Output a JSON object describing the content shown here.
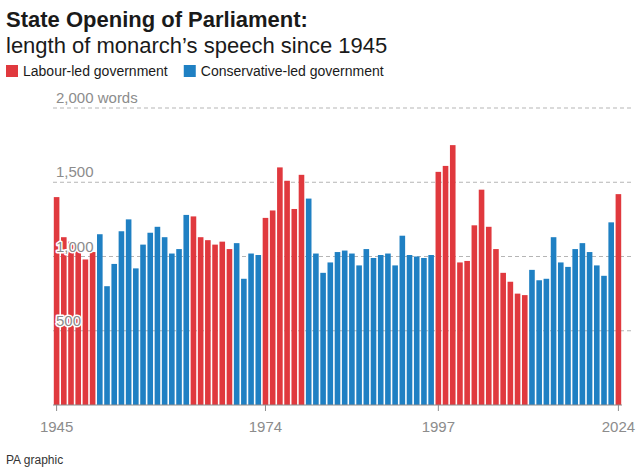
{
  "chart_data": {
    "type": "bar",
    "title": "State Opening of Parliament:",
    "subtitle": "length of monarch’s speech since 1945",
    "source": "PA graphic",
    "categories": [
      "1945",
      null,
      null,
      null,
      null,
      null,
      null,
      null,
      null,
      null,
      null,
      null,
      null,
      null,
      null,
      null,
      null,
      null,
      null,
      null,
      null,
      null,
      null,
      null,
      null,
      null,
      null,
      null,
      null,
      "1974",
      null,
      null,
      null,
      null,
      null,
      null,
      null,
      null,
      null,
      null,
      null,
      null,
      null,
      null,
      null,
      null,
      null,
      null,
      null,
      null,
      null,
      null,
      null,
      "1997",
      null,
      null,
      null,
      null,
      null,
      null,
      null,
      null,
      null,
      null,
      null,
      null,
      null,
      null,
      null,
      null,
      null,
      null,
      null,
      null,
      null,
      null,
      null,
      null,
      "2024"
    ],
    "series": [
      {
        "name": "Labour-led government",
        "color": "#e0393e",
        "values": [
          1400,
          1130,
          1100,
          1040,
          980,
          1030,
          null,
          null,
          null,
          null,
          null,
          null,
          null,
          null,
          null,
          null,
          null,
          null,
          null,
          1270,
          1130,
          1110,
          1080,
          1100,
          1050,
          null,
          null,
          null,
          null,
          1260,
          1310,
          1600,
          1510,
          1320,
          1550,
          null,
          null,
          null,
          null,
          null,
          null,
          null,
          null,
          null,
          null,
          null,
          null,
          null,
          null,
          null,
          null,
          null,
          null,
          1570,
          1610,
          1750,
          960,
          970,
          1210,
          1450,
          1200,
          1050,
          890,
          830,
          750,
          740,
          null,
          null,
          null,
          null,
          null,
          null,
          null,
          null,
          null,
          null,
          null,
          null,
          1420
        ]
      },
      {
        "name": "Conservative-led government",
        "color": "#1f80c3",
        "values": [
          null,
          null,
          null,
          null,
          null,
          null,
          1150,
          800,
          950,
          1170,
          1250,
          920,
          1080,
          1160,
          1200,
          1130,
          1020,
          1050,
          1280,
          null,
          null,
          null,
          null,
          null,
          null,
          1090,
          850,
          1020,
          1010,
          null,
          null,
          null,
          null,
          null,
          null,
          1390,
          1020,
          890,
          960,
          1030,
          1040,
          1020,
          940,
          1050,
          990,
          1010,
          1020,
          940,
          1140,
          1010,
          1000,
          990,
          1010,
          null,
          null,
          null,
          null,
          null,
          null,
          null,
          null,
          null,
          null,
          null,
          null,
          null,
          910,
          840,
          850,
          1130,
          960,
          930,
          1050,
          1090,
          1030,
          940,
          870,
          1230,
          null
        ]
      }
    ],
    "ylim": [
      0,
      2000
    ],
    "yticks": [
      500,
      {
        "value": 1000,
        "label": "1,000"
      },
      {
        "value": 1500,
        "label": "1,500"
      },
      {
        "value": 2000,
        "label": "2,000 words"
      }
    ],
    "grid": true,
    "legend": "top-left"
  }
}
